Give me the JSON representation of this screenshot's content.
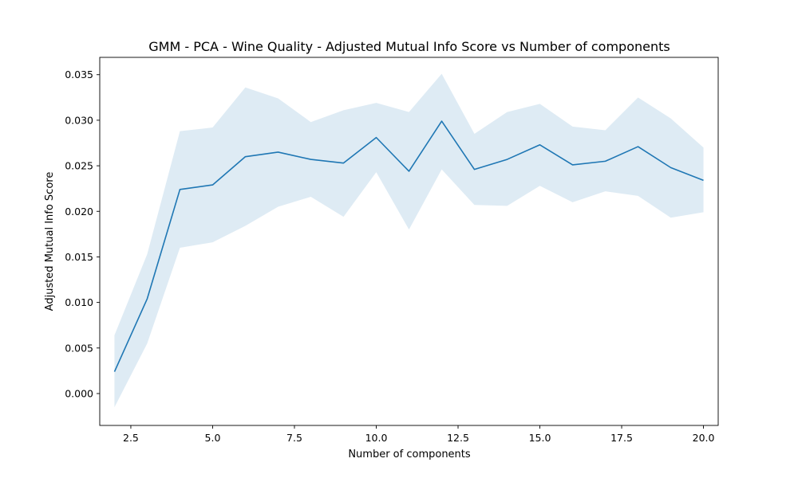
{
  "chart_data": {
    "type": "line",
    "title": "GMM - PCA - Wine Quality - Adjusted Mutual Info Score vs Number of components",
    "xlabel": "Number of components",
    "ylabel": "Adjusted Mutual Info Score",
    "xlim": [
      1.55,
      20.45
    ],
    "ylim": [
      -0.0035,
      0.0369
    ],
    "xticks": [
      2.5,
      5.0,
      7.5,
      10.0,
      12.5,
      15.0,
      17.5,
      20.0
    ],
    "xtick_labels": [
      "2.5",
      "5.0",
      "7.5",
      "10.0",
      "12.5",
      "15.0",
      "17.5",
      "20.0"
    ],
    "yticks": [
      0.0,
      0.005,
      0.01,
      0.015,
      0.02,
      0.025,
      0.03,
      0.035
    ],
    "ytick_labels": [
      "0.000",
      "0.005",
      "0.010",
      "0.015",
      "0.020",
      "0.025",
      "0.030",
      "0.035"
    ],
    "grid": false,
    "line_color": "#1f77b4",
    "band_color": "#1f77b4",
    "band_opacity": 0.15,
    "x": [
      2,
      3,
      4,
      5,
      6,
      7,
      8,
      9,
      10,
      11,
      12,
      13,
      14,
      15,
      16,
      17,
      18,
      19,
      20
    ],
    "series": [
      {
        "values": [
          0.0024,
          0.0104,
          0.0224,
          0.0229,
          0.026,
          0.0265,
          0.0257,
          0.0253,
          0.0281,
          0.0244,
          0.0299,
          0.0246,
          0.0257,
          0.0273,
          0.0251,
          0.0255,
          0.0271,
          0.0248,
          0.0234
        ],
        "lower": [
          -0.0015,
          0.0055,
          0.016,
          0.0166,
          0.0184,
          0.0205,
          0.0216,
          0.0194,
          0.0243,
          0.018,
          0.0246,
          0.0207,
          0.0206,
          0.0228,
          0.021,
          0.0222,
          0.0217,
          0.0193,
          0.0199
        ],
        "upper": [
          0.0064,
          0.0153,
          0.0288,
          0.0292,
          0.0336,
          0.0324,
          0.0298,
          0.0311,
          0.0319,
          0.0309,
          0.0351,
          0.0285,
          0.0309,
          0.0318,
          0.0293,
          0.0289,
          0.0325,
          0.0302,
          0.027
        ]
      }
    ]
  }
}
